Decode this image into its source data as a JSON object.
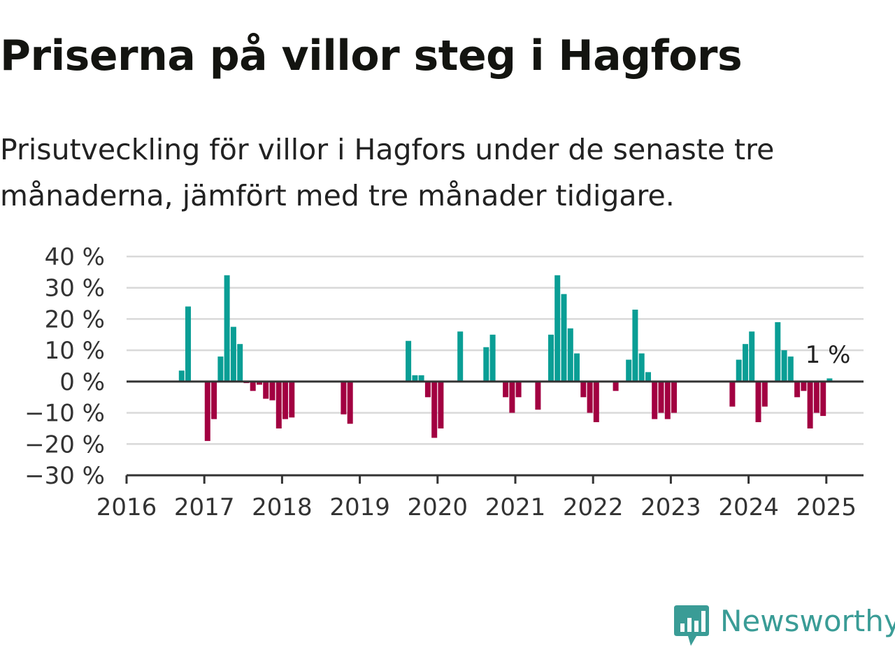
{
  "title": "Priserna på villor steg i Hagfors",
  "subtitle": "Prisutveckling för villor i Hagfors under de senaste tre månaderna, jämfört med tre månader tidigare.",
  "brand": {
    "name": "Newsworthy",
    "color": "#3a9c96",
    "icon": "bar-chart-speech-bubble-icon"
  },
  "colors": {
    "positive": "#0a9e95",
    "negative": "#a20041",
    "grid": "#d9d9d9",
    "axis": "#333333"
  },
  "chart_data": {
    "type": "bar",
    "title": "Priserna på villor steg i Hagfors",
    "subtitle": "Prisutveckling för villor i Hagfors under de senaste tre månaderna, jämfört med tre månader tidigare.",
    "xlabel": "",
    "ylabel": "",
    "ylim": [
      -30,
      40
    ],
    "xlim": [
      "2016-01",
      "2025-05"
    ],
    "yticks": [
      40,
      30,
      20,
      10,
      0,
      -10,
      -20,
      -30
    ],
    "ytick_labels": [
      "40 %",
      "30 %",
      "20 %",
      "10 %",
      "0 %",
      "−10 %",
      "−20 %",
      "−30 %"
    ],
    "xtick_labels": [
      "2016",
      "2017",
      "2018",
      "2019",
      "2020",
      "2021",
      "2022",
      "2023",
      "2024",
      "2025"
    ],
    "grid": true,
    "value_unit": "%",
    "series": [
      {
        "values": [
          {
            "month": "2016-09",
            "value": 3.5
          },
          {
            "month": "2016-10",
            "value": 24
          },
          {
            "month": "2017-01",
            "value": -19
          },
          {
            "month": "2017-02",
            "value": -12
          },
          {
            "month": "2017-03",
            "value": 8
          },
          {
            "month": "2017-04",
            "value": 34
          },
          {
            "month": "2017-05",
            "value": 17.5
          },
          {
            "month": "2017-06",
            "value": 12
          },
          {
            "month": "2017-07",
            "value": -0.5
          },
          {
            "month": "2017-08",
            "value": -3
          },
          {
            "month": "2017-09",
            "value": -1
          },
          {
            "month": "2017-10",
            "value": -5.5
          },
          {
            "month": "2017-11",
            "value": -6
          },
          {
            "month": "2017-12",
            "value": -15
          },
          {
            "month": "2018-01",
            "value": -12
          },
          {
            "month": "2018-02",
            "value": -11.5
          },
          {
            "month": "2018-10",
            "value": -10.5
          },
          {
            "month": "2018-11",
            "value": -13.5
          },
          {
            "month": "2019-08",
            "value": 13
          },
          {
            "month": "2019-09",
            "value": 2
          },
          {
            "month": "2019-10",
            "value": 2
          },
          {
            "month": "2019-11",
            "value": -5
          },
          {
            "month": "2019-12",
            "value": -18
          },
          {
            "month": "2020-01",
            "value": -15
          },
          {
            "month": "2020-04",
            "value": 16
          },
          {
            "month": "2020-08",
            "value": 11
          },
          {
            "month": "2020-09",
            "value": 15
          },
          {
            "month": "2020-11",
            "value": -5
          },
          {
            "month": "2020-12",
            "value": -10
          },
          {
            "month": "2021-01",
            "value": -5
          },
          {
            "month": "2021-04",
            "value": -9
          },
          {
            "month": "2021-06",
            "value": 15
          },
          {
            "month": "2021-07",
            "value": 34
          },
          {
            "month": "2021-08",
            "value": 28
          },
          {
            "month": "2021-09",
            "value": 17
          },
          {
            "month": "2021-10",
            "value": 9
          },
          {
            "month": "2021-11",
            "value": -5
          },
          {
            "month": "2021-12",
            "value": -10
          },
          {
            "month": "2022-01",
            "value": -13
          },
          {
            "month": "2022-04",
            "value": -3
          },
          {
            "month": "2022-06",
            "value": 7
          },
          {
            "month": "2022-07",
            "value": 23
          },
          {
            "month": "2022-08",
            "value": 9
          },
          {
            "month": "2022-09",
            "value": 3
          },
          {
            "month": "2022-10",
            "value": -12
          },
          {
            "month": "2022-11",
            "value": -10
          },
          {
            "month": "2022-12",
            "value": -12
          },
          {
            "month": "2023-01",
            "value": -10
          },
          {
            "month": "2023-10",
            "value": -8
          },
          {
            "month": "2023-11",
            "value": 7
          },
          {
            "month": "2023-12",
            "value": 12
          },
          {
            "month": "2024-01",
            "value": 16
          },
          {
            "month": "2024-02",
            "value": -13
          },
          {
            "month": "2024-03",
            "value": -8
          },
          {
            "month": "2024-05",
            "value": 19
          },
          {
            "month": "2024-06",
            "value": 10
          },
          {
            "month": "2024-07",
            "value": 8
          },
          {
            "month": "2024-08",
            "value": -5
          },
          {
            "month": "2024-09",
            "value": -3
          },
          {
            "month": "2024-10",
            "value": -15
          },
          {
            "month": "2024-11",
            "value": -10
          },
          {
            "month": "2024-12",
            "value": -11
          },
          {
            "month": "2025-01",
            "value": 1
          }
        ]
      }
    ],
    "annotations": [
      {
        "month": "2025-01",
        "text": "1 %"
      }
    ]
  }
}
